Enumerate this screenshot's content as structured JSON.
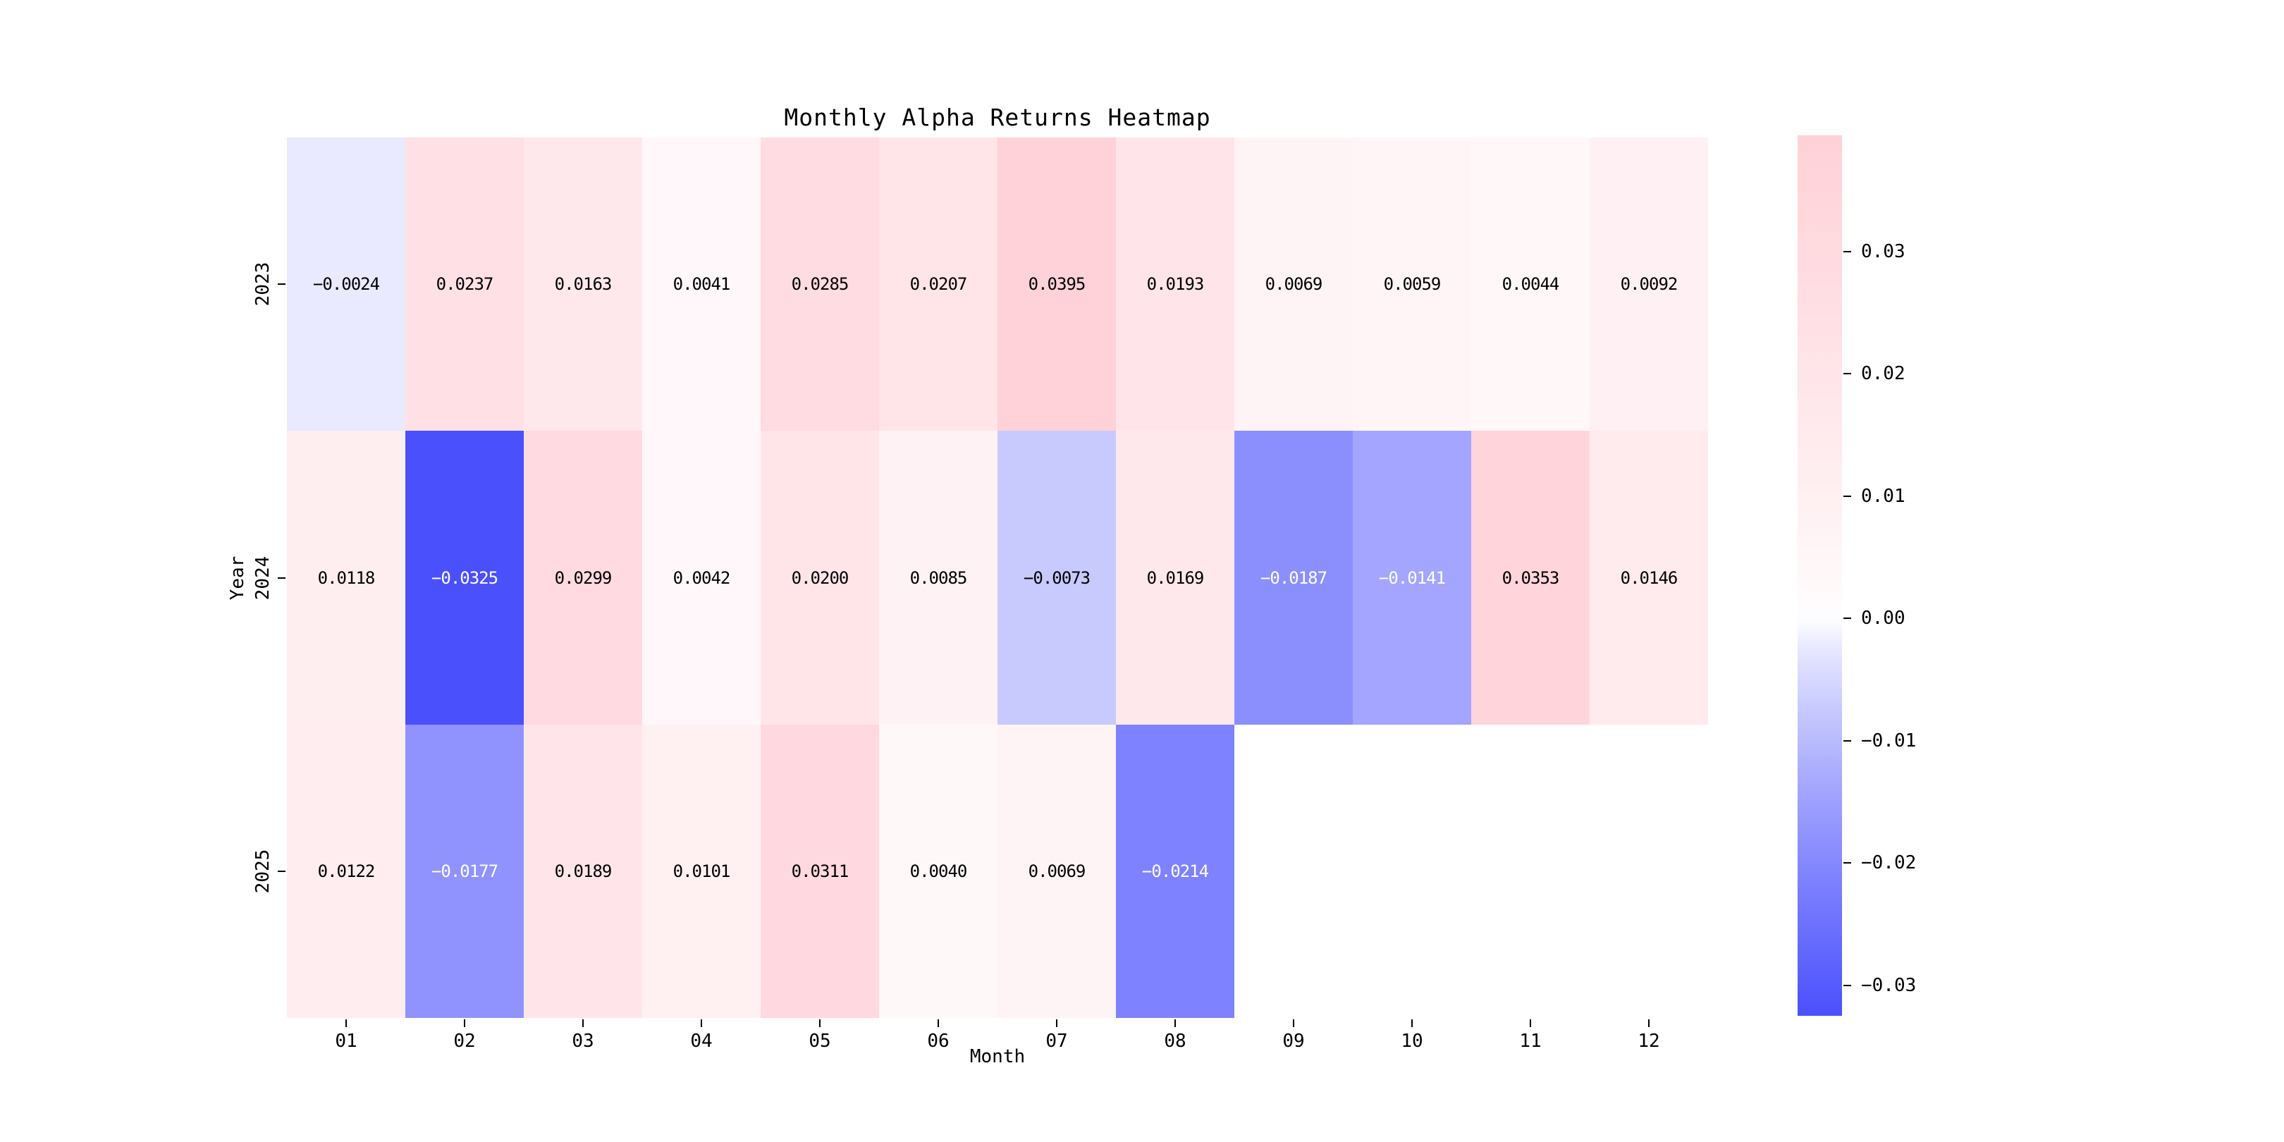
{
  "title": "Monthly Alpha Returns Heatmap",
  "chart_data": {
    "type": "heatmap",
    "title": "Monthly Alpha Returns Heatmap",
    "xlabel": "Month",
    "ylabel": "Year",
    "x_categories": [
      "01",
      "02",
      "03",
      "04",
      "05",
      "06",
      "07",
      "08",
      "09",
      "10",
      "11",
      "12"
    ],
    "y_categories": [
      "2023",
      "2024",
      "2025"
    ],
    "rows": [
      [
        -0.0024,
        0.0237,
        0.0163,
        0.0041,
        0.0285,
        0.0207,
        0.0395,
        0.0193,
        0.0069,
        0.0059,
        0.0044,
        0.0092
      ],
      [
        0.0118,
        -0.0325,
        0.0299,
        0.0042,
        0.02,
        0.0085,
        -0.0073,
        0.0169,
        -0.0187,
        -0.0141,
        0.0353,
        0.0146
      ],
      [
        0.0122,
        -0.0177,
        0.0189,
        0.0101,
        0.0311,
        0.004,
        0.0069,
        -0.0214,
        null,
        null,
        null,
        null
      ]
    ],
    "value_format_decimals": 4,
    "vmin": -0.0325,
    "vmax": 0.0395,
    "center": 0,
    "colorbar_ticks": [
      0.03,
      0.02,
      0.01,
      0.0,
      -0.01,
      -0.02,
      -0.03
    ],
    "colorbar_position": "right",
    "grid": false,
    "colors": {
      "background": "#ffffff",
      "center_color": "#ffffff",
      "positive_extreme": "#ffd1d8",
      "negative_extreme": "#4b50fd",
      "annotation_dark": "#000000",
      "annotation_light": "#ffffff"
    }
  }
}
